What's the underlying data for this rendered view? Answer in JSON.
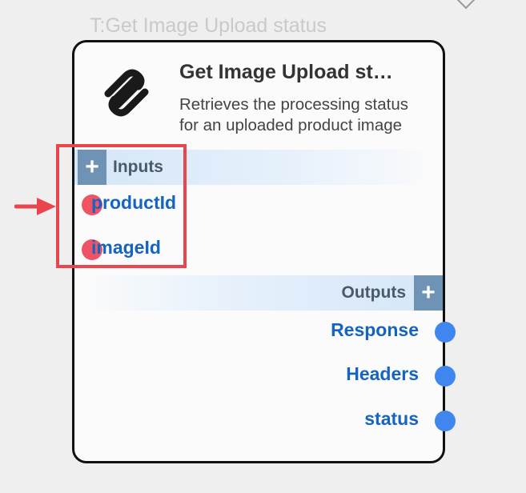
{
  "node": {
    "caption": "T:Get Image Upload status",
    "title": "Get Image Upload st…",
    "description": "Retrieves the processing status for an uploaded product image",
    "logo_icon": "squarespace-logo-icon",
    "inputs_label": "Inputs",
    "outputs_label": "Outputs",
    "add_symbol": "+",
    "inputs": [
      {
        "label": "productId"
      },
      {
        "label": "imageId"
      }
    ],
    "outputs": [
      {
        "label": "Response"
      },
      {
        "label": "Headers"
      },
      {
        "label": "status"
      }
    ]
  },
  "colors": {
    "input_port": "#ef5466",
    "output_port": "#3f86ef",
    "highlight": "#e8464c",
    "port_label": "#1564c0"
  }
}
